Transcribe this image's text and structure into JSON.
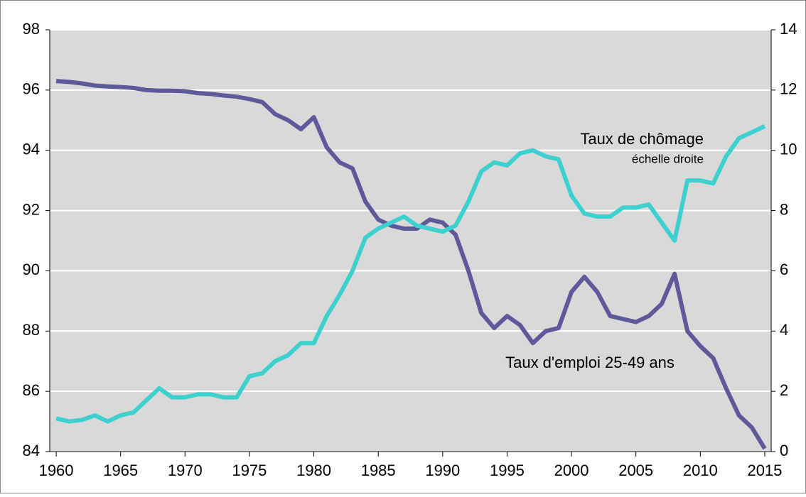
{
  "chart_data": {
    "type": "line",
    "x": [
      1960,
      1961,
      1962,
      1963,
      1964,
      1965,
      1966,
      1967,
      1968,
      1969,
      1970,
      1971,
      1972,
      1973,
      1974,
      1975,
      1976,
      1977,
      1978,
      1979,
      1980,
      1981,
      1982,
      1983,
      1984,
      1985,
      1986,
      1987,
      1988,
      1989,
      1990,
      1991,
      1992,
      1993,
      1994,
      1995,
      1996,
      1997,
      1998,
      1999,
      2000,
      2001,
      2002,
      2003,
      2004,
      2005,
      2006,
      2007,
      2008,
      2009,
      2010,
      2011,
      2012,
      2013,
      2014,
      2015
    ],
    "series": [
      {
        "name": "Taux d'emploi 25-49 ans",
        "color": "#5e5a9a",
        "values": [
          96.3,
          96.27,
          96.22,
          96.15,
          96.12,
          96.1,
          96.07,
          96.0,
          95.98,
          95.98,
          95.96,
          95.9,
          95.87,
          95.82,
          95.78,
          95.7,
          95.6,
          95.2,
          95.0,
          94.7,
          95.1,
          94.1,
          93.6,
          93.4,
          92.3,
          91.7,
          91.5,
          91.4,
          91.4,
          91.7,
          91.6,
          91.2,
          90.0,
          88.6,
          88.1,
          88.5,
          88.2,
          87.6,
          88.0,
          88.1,
          89.3,
          89.8,
          89.3,
          88.5,
          88.4,
          88.3,
          88.5,
          88.9,
          89.9,
          88.0,
          87.5,
          87.1,
          86.1,
          85.2,
          84.8,
          84.1
        ]
      },
      {
        "name": "Taux de chômage",
        "color": "#3ecfcf",
        "axis": "y2",
        "values": [
          1.1,
          1.0,
          1.05,
          1.2,
          1.0,
          1.2,
          1.3,
          1.7,
          2.1,
          1.8,
          1.8,
          1.9,
          1.9,
          1.8,
          1.8,
          2.5,
          2.6,
          3.0,
          3.2,
          3.6,
          3.6,
          4.5,
          5.2,
          6.0,
          7.1,
          7.4,
          7.6,
          7.8,
          7.5,
          7.4,
          7.3,
          7.5,
          8.3,
          9.3,
          9.6,
          9.5,
          9.9,
          10.0,
          9.8,
          9.7,
          8.5,
          7.9,
          7.8,
          7.8,
          8.1,
          8.1,
          8.2,
          7.6,
          7.0,
          9.0,
          9.0,
          8.9,
          9.8,
          10.4,
          10.6,
          10.8
        ]
      }
    ],
    "annotation": "échelle droite",
    "xlim": [
      1959.5,
      2015.5
    ],
    "xticks": [
      1960,
      1965,
      1970,
      1975,
      1980,
      1985,
      1990,
      1995,
      2000,
      2005,
      2010,
      2015
    ],
    "ylim": [
      84,
      98
    ],
    "yticks": [
      84,
      86,
      88,
      90,
      92,
      94,
      96,
      98
    ],
    "y2lim": [
      0,
      14
    ],
    "y2ticks": [
      0,
      2,
      4,
      6,
      8,
      10,
      12,
      14
    ],
    "grid": true
  }
}
